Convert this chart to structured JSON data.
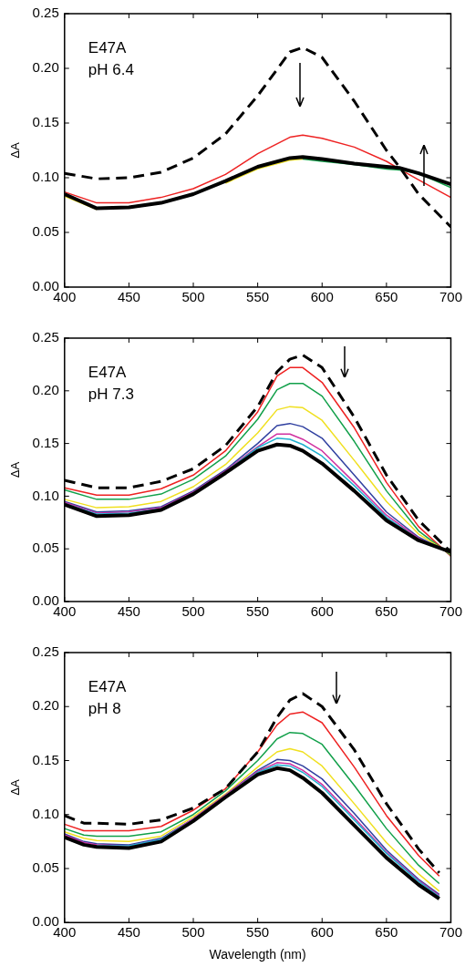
{
  "chart_data": [
    {
      "type": "line",
      "ylabel": "ΔA",
      "annotations": [
        "E47A",
        "pH 6.4"
      ],
      "x": [
        400,
        425,
        450,
        475,
        500,
        525,
        550,
        575,
        585,
        600,
        625,
        650,
        660,
        675,
        700
      ],
      "xlim": [
        400,
        700
      ],
      "xticks": [
        400,
        450,
        500,
        550,
        600,
        650,
        700
      ],
      "ylim": [
        0,
        0.25
      ],
      "yticks": [
        {
          "value": 0,
          "label": "0.00"
        },
        {
          "value": 0.05,
          "label": "0.05"
        },
        {
          "value": 0.1,
          "label": "0.10"
        },
        {
          "value": 0.15,
          "label": "0.15"
        },
        {
          "value": 0.2,
          "label": "0.20"
        },
        {
          "value": 0.25,
          "label": "0.25"
        }
      ],
      "grid": false,
      "legend": false,
      "marker": "none",
      "series": [
        {
          "color": "#000000",
          "line_style": "dashed",
          "values": [
            0.104,
            0.099,
            0.1,
            0.105,
            0.118,
            0.14,
            0.175,
            0.215,
            0.219,
            0.21,
            0.17,
            0.125,
            0.11,
            0.085,
            0.055
          ]
        },
        {
          "color": "#ee2222",
          "values": [
            0.087,
            0.077,
            0.077,
            0.082,
            0.09,
            0.103,
            0.122,
            0.137,
            0.139,
            0.136,
            0.128,
            0.115,
            0.108,
            0.098,
            0.082
          ]
        },
        {
          "color": "#12a04a",
          "values": [
            null,
            null,
            null,
            null,
            null,
            null,
            null,
            null,
            0.117,
            0.115,
            0.112,
            0.108,
            0.107,
            0.104,
            0.091
          ]
        },
        {
          "color": "#f0e020",
          "values": [
            0.083,
            0.071,
            null,
            null,
            null,
            0.095,
            0.108,
            0.116,
            0.117,
            null,
            null,
            null,
            null,
            null,
            null
          ]
        },
        {
          "color": "#000000",
          "values": [
            0.085,
            0.072,
            0.073,
            0.077,
            0.085,
            0.097,
            0.11,
            0.118,
            0.119,
            0.117,
            0.113,
            0.11,
            0.109,
            0.104,
            0.094
          ]
        }
      ]
    },
    {
      "type": "line",
      "ylabel": "ΔA",
      "annotations": [
        "E47A",
        "pH 7.3"
      ],
      "x": [
        400,
        425,
        450,
        475,
        500,
        525,
        550,
        565,
        575,
        585,
        600,
        625,
        650,
        675,
        700
      ],
      "xlim": [
        400,
        700
      ],
      "xticks": [
        400,
        450,
        500,
        550,
        600,
        650,
        700
      ],
      "ylim": [
        0,
        0.25
      ],
      "yticks": [
        {
          "value": 0,
          "label": "0.00"
        },
        {
          "value": 0.05,
          "label": "0.05"
        },
        {
          "value": 0.1,
          "label": "0.10"
        },
        {
          "value": 0.15,
          "label": "0.15"
        },
        {
          "value": 0.2,
          "label": "0.20"
        },
        {
          "value": 0.25,
          "label": "0.25"
        }
      ],
      "grid": false,
      "legend": false,
      "marker": "none",
      "series": [
        {
          "color": "#000000",
          "line_style": "dashed",
          "values": [
            0.115,
            0.108,
            0.108,
            0.114,
            0.126,
            0.148,
            0.185,
            0.218,
            0.23,
            0.234,
            0.222,
            0.175,
            0.12,
            0.077,
            0.047
          ]
        },
        {
          "color": "#ee2222",
          "values": [
            0.108,
            0.101,
            0.101,
            0.107,
            0.12,
            0.143,
            0.18,
            0.214,
            0.222,
            0.222,
            0.208,
            0.165,
            0.113,
            0.071,
            0.043
          ]
        },
        {
          "color": "#12a04a",
          "values": [
            0.106,
            0.097,
            0.097,
            0.102,
            0.116,
            0.138,
            0.173,
            0.201,
            0.207,
            0.207,
            0.195,
            0.152,
            0.105,
            0.067,
            0.044
          ]
        },
        {
          "color": "#f0e020",
          "values": [
            0.097,
            0.089,
            0.09,
            0.095,
            0.109,
            0.13,
            0.16,
            0.182,
            0.185,
            0.184,
            0.172,
            0.134,
            0.095,
            0.064,
            0.045
          ]
        },
        {
          "color": "#3040a0",
          "values": [
            0.095,
            0.085,
            0.086,
            0.09,
            0.105,
            0.125,
            0.15,
            0.167,
            0.169,
            0.166,
            0.155,
            0.12,
            0.085,
            0.061,
            0.046
          ]
        },
        {
          "color": "#d030a0",
          "values": [
            0.094,
            0.084,
            0.085,
            0.089,
            0.104,
            0.124,
            0.147,
            0.159,
            0.159,
            0.154,
            0.143,
            0.113,
            0.082,
            0.06,
            0.046
          ]
        },
        {
          "color": "#20b0d0",
          "values": [
            0.093,
            0.083,
            0.084,
            0.088,
            0.103,
            0.123,
            0.146,
            0.155,
            0.154,
            0.149,
            0.138,
            0.11,
            0.08,
            0.059,
            0.047
          ]
        },
        {
          "color": "#000000",
          "values": [
            0.092,
            0.081,
            0.082,
            0.087,
            0.102,
            0.122,
            0.143,
            0.149,
            0.148,
            0.143,
            0.131,
            0.105,
            0.077,
            0.058,
            0.047
          ]
        }
      ]
    },
    {
      "type": "line",
      "ylabel": "ΔA",
      "xlabel": "Wavelength (nm)",
      "annotations": [
        "E47A",
        "pH 8"
      ],
      "x": [
        400,
        415,
        425,
        450,
        475,
        500,
        525,
        550,
        565,
        575,
        585,
        600,
        625,
        650,
        675,
        691
      ],
      "xlim": [
        400,
        700
      ],
      "xticks": [
        400,
        450,
        500,
        550,
        600,
        650,
        700
      ],
      "ylim": [
        0,
        0.25
      ],
      "yticks": [
        {
          "value": 0,
          "label": "0.00"
        },
        {
          "value": 0.05,
          "label": "0.05"
        },
        {
          "value": 0.1,
          "label": "0.10"
        },
        {
          "value": 0.15,
          "label": "0.15"
        },
        {
          "value": 0.2,
          "label": "0.20"
        },
        {
          "value": 0.25,
          "label": "0.25"
        }
      ],
      "grid": false,
      "legend": false,
      "marker": "none",
      "series": [
        {
          "color": "#000000",
          "line_style": "dashed",
          "values": [
            0.099,
            0.092,
            0.092,
            0.091,
            0.095,
            0.106,
            0.124,
            0.158,
            0.19,
            0.206,
            0.212,
            0.2,
            0.16,
            0.11,
            0.068,
            0.046
          ]
        },
        {
          "color": "#ee2222",
          "values": [
            0.091,
            0.085,
            0.085,
            0.085,
            0.089,
            0.104,
            0.124,
            0.158,
            0.183,
            0.193,
            0.195,
            0.185,
            0.144,
            0.099,
            0.062,
            0.043
          ]
        },
        {
          "color": "#12a04a",
          "values": [
            0.087,
            0.081,
            0.08,
            0.08,
            0.084,
            0.1,
            0.122,
            0.15,
            0.17,
            0.176,
            0.175,
            0.165,
            0.127,
            0.087,
            0.053,
            0.036
          ]
        },
        {
          "color": "#f0e020",
          "values": [
            0.084,
            0.078,
            0.076,
            0.075,
            0.08,
            0.098,
            0.119,
            0.144,
            0.158,
            0.161,
            0.158,
            0.145,
            0.11,
            0.074,
            0.045,
            0.029
          ]
        },
        {
          "color": "#3040a0",
          "values": [
            0.082,
            0.075,
            0.073,
            0.072,
            0.078,
            0.096,
            0.118,
            0.141,
            0.151,
            0.15,
            0.145,
            0.133,
            0.101,
            0.067,
            0.04,
            0.026
          ]
        },
        {
          "color": "#d030a0",
          "values": [
            0.081,
            0.074,
            0.072,
            0.071,
            0.077,
            0.096,
            0.118,
            0.14,
            0.148,
            0.147,
            0.141,
            0.128,
            0.097,
            0.065,
            0.039,
            0.025
          ]
        },
        {
          "color": "#20b0d0",
          "values": [
            null,
            null,
            0.071,
            0.071,
            0.077,
            0.095,
            0.117,
            0.139,
            0.146,
            0.145,
            0.139,
            0.126,
            0.095,
            0.064,
            0.038,
            0.024
          ]
        },
        {
          "color": "#000000",
          "values": [
            0.079,
            0.072,
            0.07,
            0.069,
            0.075,
            0.094,
            0.116,
            0.137,
            0.143,
            0.141,
            0.134,
            0.12,
            0.09,
            0.06,
            0.035,
            0.022
          ]
        }
      ]
    }
  ]
}
